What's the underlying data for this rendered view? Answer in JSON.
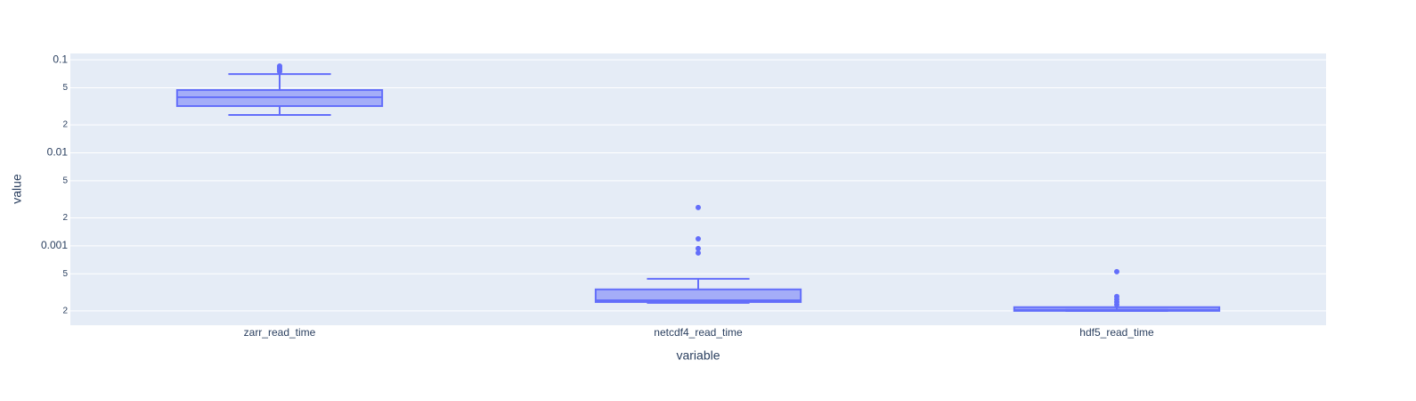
{
  "chart_data": {
    "type": "box",
    "x_label": "variable",
    "y_label": "value",
    "categories": [
      "zarr_read_time",
      "netcdf4_read_time",
      "hdf5_read_time"
    ],
    "series": [
      {
        "color": "#636efa",
        "lowerfence": [
          0.0255,
          0.000244,
          0.0002
        ],
        "q1": [
          0.0318,
          0.000249,
          0.0002
        ],
        "median": [
          0.0396,
          0.00026,
          0.000205
        ],
        "q3": [
          0.0473,
          0.00034,
          0.000219
        ],
        "upperfence": [
          0.0703,
          0.000442,
          0.000205
        ],
        "outliers": [
          [
            0.0857,
            0.082,
            0.0785,
            0.075
          ],
          [
            0.00258,
            0.00119,
            0.000936,
            0.000838
          ],
          [
            0.000527,
            0.000285,
            0.000266,
            0.000249,
            0.000233
          ]
        ]
      }
    ],
    "log_y": true,
    "grid": true,
    "ylim": [
      0.00014,
      0.117
    ],
    "yticks": [
      {
        "value": 0.0002,
        "label": "2"
      },
      {
        "value": 0.0005,
        "label": "5"
      },
      0.001,
      {
        "value": 0.002,
        "label": "2"
      },
      {
        "value": 0.005,
        "label": "5"
      },
      0.01,
      {
        "value": 0.02,
        "label": "2"
      },
      {
        "value": 0.05,
        "label": "5"
      },
      0.1
    ]
  }
}
